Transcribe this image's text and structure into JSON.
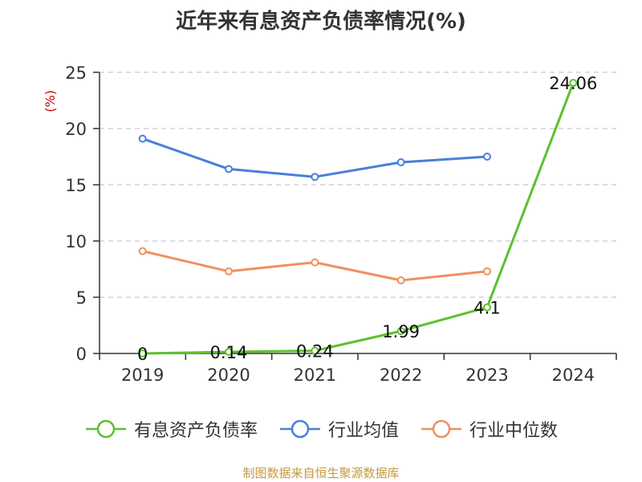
{
  "chart_data": {
    "type": "line",
    "title": "近年来有息资产负债率情况(%)",
    "ylabel": "(%)",
    "xlabel": "",
    "categories": [
      "2019",
      "2020",
      "2021",
      "2022",
      "2023",
      "2024"
    ],
    "ylim": [
      0,
      25
    ],
    "yticks": [
      "0",
      "5",
      "10",
      "15",
      "20",
      "25"
    ],
    "grid": "horizontal dashed",
    "legend_position": "bottom",
    "series": [
      {
        "name": "有息资产负债率",
        "color": "#5cc12e",
        "values": [
          0,
          0.14,
          0.24,
          1.99,
          4.1,
          24.06
        ],
        "labels": [
          "0",
          "0.14",
          "0.24",
          "1.99",
          "4.1",
          "24.06"
        ]
      },
      {
        "name": "行业均值",
        "color": "#4a7fd8",
        "values": [
          19.1,
          16.4,
          15.7,
          17.0,
          17.5,
          null
        ]
      },
      {
        "name": "行业中位数",
        "color": "#f09060",
        "values": [
          9.1,
          7.3,
          8.1,
          6.5,
          7.3,
          null
        ]
      }
    ]
  },
  "footer": {
    "source": "制图数据来自恒生聚源数据库"
  }
}
